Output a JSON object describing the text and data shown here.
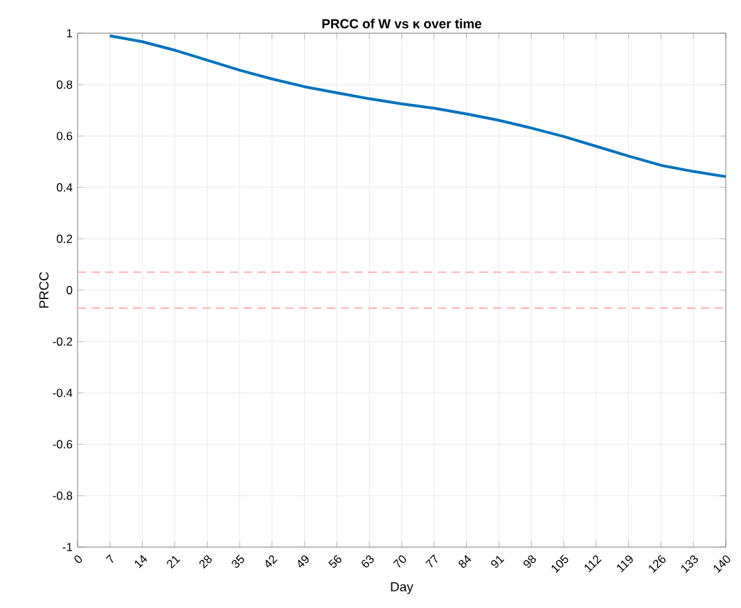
{
  "chart_data": {
    "type": "line",
    "title": "PRCC of W vs κ over time",
    "xlabel": "Day",
    "ylabel": "PRCC",
    "x": [
      7,
      14,
      21,
      28,
      35,
      42,
      49,
      56,
      63,
      70,
      77,
      84,
      91,
      98,
      105,
      112,
      119,
      126,
      133,
      140
    ],
    "series": [
      {
        "color": "#0072bd",
        "values": [
          0.99,
          0.967,
          0.934,
          0.895,
          0.856,
          0.822,
          0.792,
          0.768,
          0.745,
          0.725,
          0.708,
          0.686,
          0.661,
          0.631,
          0.598,
          0.56,
          0.522,
          0.486,
          0.462,
          0.442
        ]
      }
    ],
    "xlim": [
      0,
      140
    ],
    "ylim": [
      -1,
      1
    ],
    "xticks": [
      0,
      7,
      14,
      21,
      28,
      35,
      42,
      49,
      56,
      63,
      70,
      77,
      84,
      91,
      98,
      105,
      112,
      119,
      126,
      133,
      140
    ],
    "yticks": [
      -1,
      -0.8,
      -0.6,
      -0.4,
      -0.2,
      0,
      0.2,
      0.4,
      0.6,
      0.8,
      1
    ],
    "ref_lines": [
      {
        "axis": "y",
        "value": 0.07,
        "color": "#ff9b9b",
        "line_style": "dashed"
      },
      {
        "axis": "y",
        "value": -0.07,
        "color": "#ff9b9b",
        "line_style": "dashed"
      }
    ],
    "grid": true,
    "marker": "none",
    "line_style": "solid"
  }
}
